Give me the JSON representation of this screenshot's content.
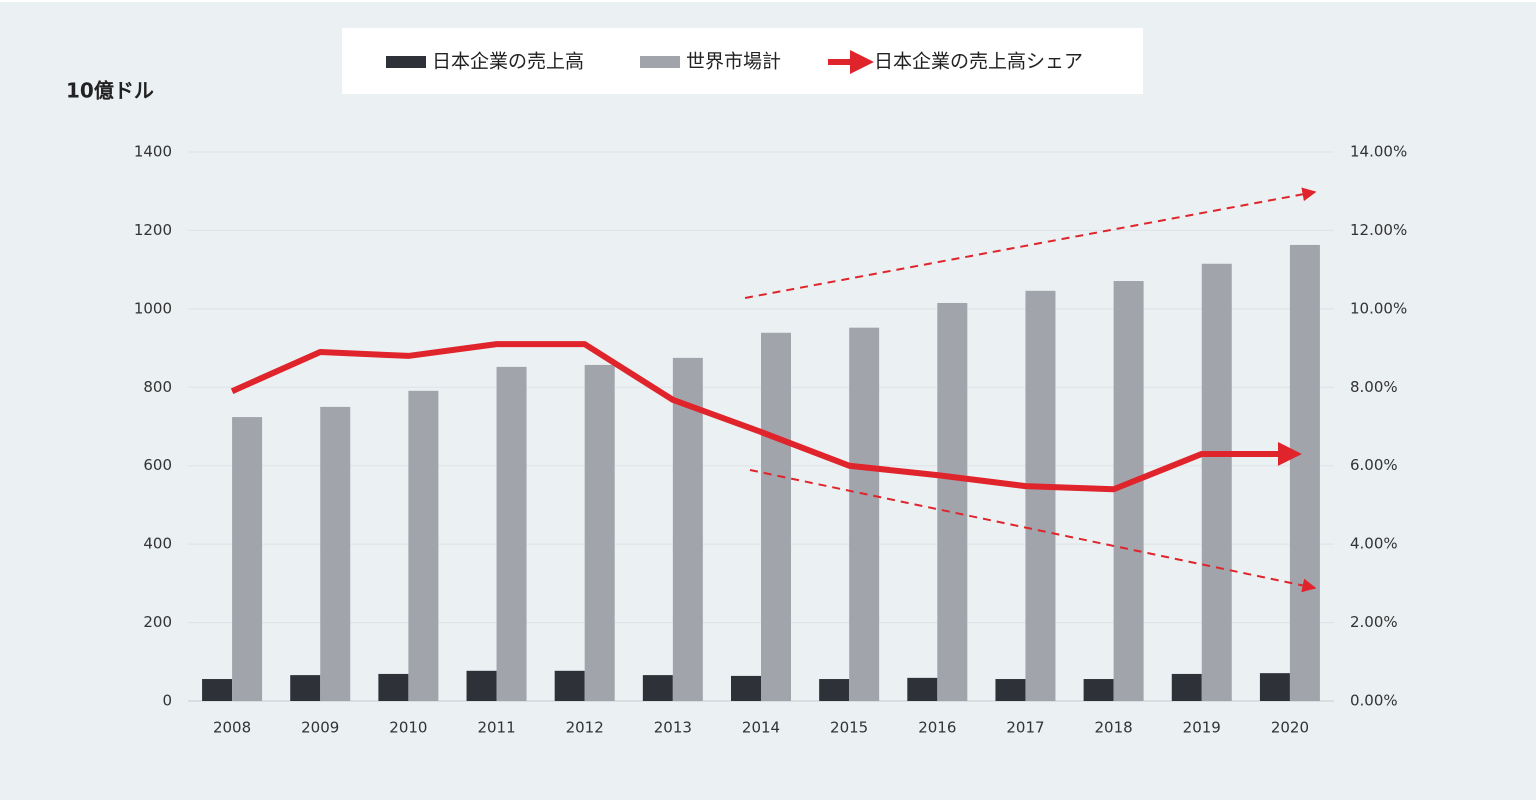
{
  "chart_data": {
    "type": "bar",
    "y_label": "10億ドル",
    "categories": [
      "2008",
      "2009",
      "2010",
      "2011",
      "2012",
      "2013",
      "2014",
      "2015",
      "2016",
      "2017",
      "2018",
      "2019",
      "2020"
    ],
    "series": [
      {
        "name": "日本企業の売上高",
        "type": "bar",
        "color": "#2e3138",
        "values": [
          56,
          66,
          69,
          77,
          77,
          66,
          64,
          56,
          59,
          56,
          56,
          69,
          71
        ]
      },
      {
        "name": "世界市場計",
        "type": "bar",
        "color": "#a2a4ac",
        "values": [
          724,
          750,
          791,
          852,
          857,
          875,
          939,
          952,
          1015,
          1046,
          1071,
          1115,
          1163
        ]
      },
      {
        "name": "日本企業の売上高シェア",
        "type": "line",
        "axis": "y2",
        "color": "#e0242b",
        "values": [
          7.9,
          8.9,
          8.8,
          9.1,
          9.1,
          7.68,
          6.86,
          6.0,
          5.76,
          5.48,
          5.4,
          6.3,
          6.3
        ]
      }
    ],
    "ylim": [
      0,
      1400
    ],
    "yticks": [
      0,
      200,
      400,
      600,
      800,
      1000,
      1200,
      1400
    ],
    "y2lim": [
      0,
      14
    ],
    "y2ticks": [
      {
        "value": 0,
        "label": "0.00%"
      },
      {
        "value": 2,
        "label": "2.00%"
      },
      {
        "value": 4,
        "label": "4.00%"
      },
      {
        "value": 6,
        "label": "6.00%"
      },
      {
        "value": 8,
        "label": "8.00%"
      },
      {
        "value": 10,
        "label": "10.00%"
      },
      {
        "value": 12,
        "label": "12.00%"
      },
      {
        "value": 14,
        "label": "14.00%"
      }
    ],
    "grid": true,
    "legend": "top"
  }
}
